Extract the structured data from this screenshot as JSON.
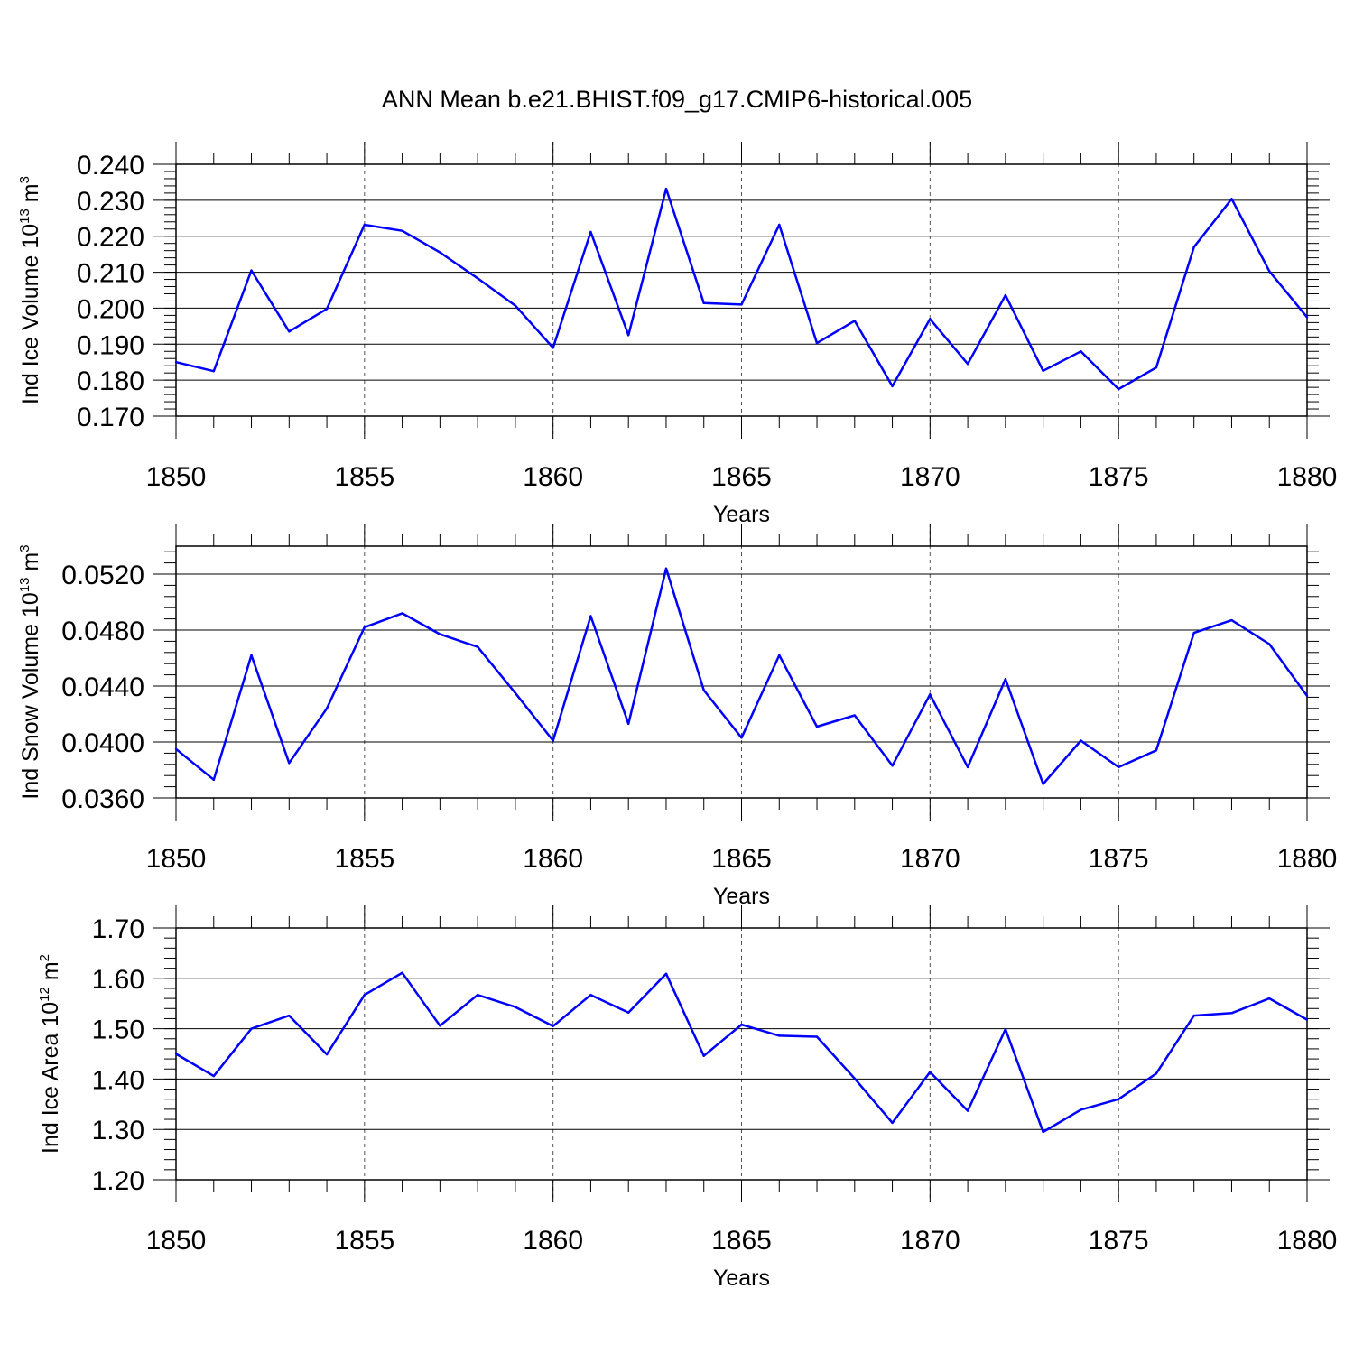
{
  "chart_data": {
    "title": "ANN Mean b.e21.BHIST.f09_g17.CMIP6-historical.005",
    "type": "line",
    "line_color": "#0000ff",
    "panels": [
      {
        "type": "line",
        "ylabel_main": "Ind Ice Volume 10",
        "ylabel_exp": "13",
        "ylabel_unit": " m",
        "ylabel_unit_exp": "3",
        "xlabel": "Years",
        "xlim": [
          1850,
          1880
        ],
        "ylim": [
          0.17,
          0.24
        ],
        "yticks": [
          "0.170",
          "0.180",
          "0.190",
          "0.200",
          "0.210",
          "0.220",
          "0.230",
          "0.240"
        ],
        "xticks": [
          "1850",
          "1855",
          "1860",
          "1865",
          "1870",
          "1875",
          "1880"
        ],
        "x": [
          1850,
          1851,
          1852,
          1853,
          1854,
          1855,
          1856,
          1857,
          1858,
          1859,
          1860,
          1861,
          1862,
          1863,
          1864,
          1865,
          1866,
          1867,
          1868,
          1869,
          1870,
          1871,
          1872,
          1873,
          1874,
          1875,
          1876,
          1877,
          1878,
          1879,
          1880
        ],
        "values": [
          0.185,
          0.1825,
          0.2105,
          0.1935,
          0.1998,
          0.2232,
          0.2215,
          0.2155,
          0.2083,
          0.2007,
          0.189,
          0.2212,
          0.1925,
          0.2332,
          0.2014,
          0.201,
          0.2232,
          0.1903,
          0.1965,
          0.1783,
          0.197,
          0.1845,
          0.2036,
          0.1826,
          0.188,
          0.1775,
          0.1835,
          0.217,
          0.2304,
          0.2103,
          0.1975
        ]
      },
      {
        "type": "line",
        "ylabel_main": "Ind Snow Volume 10",
        "ylabel_exp": "13",
        "ylabel_unit": " m",
        "ylabel_unit_exp": "3",
        "xlabel": "Years",
        "xlim": [
          1850,
          1880
        ],
        "ylim": [
          0.036,
          0.054
        ],
        "yticks": [
          "0.0360",
          "0.0400",
          "0.0440",
          "0.0480",
          "0.0520"
        ],
        "xticks": [
          "1850",
          "1855",
          "1860",
          "1865",
          "1870",
          "1875",
          "1880"
        ],
        "x": [
          1850,
          1851,
          1852,
          1853,
          1854,
          1855,
          1856,
          1857,
          1858,
          1859,
          1860,
          1861,
          1862,
          1863,
          1864,
          1865,
          1866,
          1867,
          1868,
          1869,
          1870,
          1871,
          1872,
          1873,
          1874,
          1875,
          1876,
          1877,
          1878,
          1879,
          1880
        ],
        "values": [
          0.0395,
          0.0373,
          0.0462,
          0.0385,
          0.0424,
          0.0482,
          0.0492,
          0.0477,
          0.0468,
          0.0435,
          0.0401,
          0.049,
          0.0413,
          0.0524,
          0.0437,
          0.0403,
          0.0462,
          0.0411,
          0.0419,
          0.0383,
          0.0434,
          0.0382,
          0.0445,
          0.037,
          0.0401,
          0.0382,
          0.0394,
          0.0478,
          0.0487,
          0.047,
          0.0433
        ]
      },
      {
        "type": "line",
        "ylabel_main": "Ind Ice Area 10",
        "ylabel_exp": "12",
        "ylabel_unit": " m",
        "ylabel_unit_exp": "2",
        "xlabel": "Years",
        "xlim": [
          1850,
          1880
        ],
        "ylim": [
          1.2,
          1.7
        ],
        "yticks": [
          "1.20",
          "1.30",
          "1.40",
          "1.50",
          "1.60",
          "1.70"
        ],
        "xticks": [
          "1850",
          "1855",
          "1860",
          "1865",
          "1870",
          "1875",
          "1880"
        ],
        "x": [
          1850,
          1851,
          1852,
          1853,
          1854,
          1855,
          1856,
          1857,
          1858,
          1859,
          1860,
          1861,
          1862,
          1863,
          1864,
          1865,
          1866,
          1867,
          1868,
          1869,
          1870,
          1871,
          1872,
          1873,
          1874,
          1875,
          1876,
          1877,
          1878,
          1879,
          1880
        ],
        "values": [
          1.45,
          1.406,
          1.5,
          1.526,
          1.449,
          1.567,
          1.611,
          1.506,
          1.567,
          1.543,
          1.505,
          1.567,
          1.532,
          1.609,
          1.446,
          1.508,
          1.486,
          1.484,
          1.401,
          1.313,
          1.414,
          1.337,
          1.499,
          1.295,
          1.339,
          1.36,
          1.411,
          1.526,
          1.531,
          1.56,
          1.518
        ]
      }
    ]
  }
}
